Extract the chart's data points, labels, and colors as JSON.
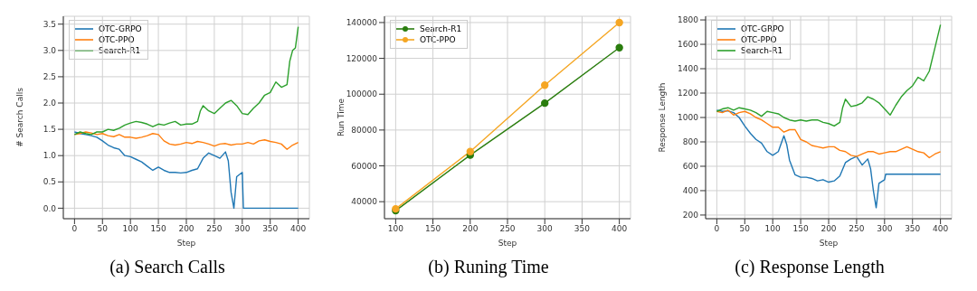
{
  "chart_data": [
    {
      "type": "line",
      "title": "(a) Search Calls",
      "xlabel": "Step",
      "ylabel": "# Search Calls",
      "xlim": [
        -20,
        420
      ],
      "xticks": [
        0,
        50,
        100,
        150,
        200,
        250,
        300,
        350,
        400
      ],
      "ylim": [
        -0.2,
        3.65
      ],
      "yticks": [
        {
          "value": 0,
          "label": "0.0"
        },
        0.5,
        {
          "value": 1,
          "label": "1.0"
        },
        1.5,
        {
          "value": 2,
          "label": "2.0"
        },
        2.5,
        {
          "value": 3,
          "label": "3.0"
        },
        3.5
      ],
      "grid": true,
      "legend": "top left",
      "marker": "none",
      "series": [
        {
          "name": "OTC-GRPO",
          "color": "#1f77b4",
          "x": [
            0,
            10,
            20,
            30,
            40,
            50,
            60,
            70,
            80,
            90,
            100,
            110,
            120,
            130,
            140,
            150,
            160,
            170,
            180,
            190,
            200,
            210,
            220,
            230,
            240,
            250,
            260,
            270,
            275,
            280,
            285,
            290,
            300,
            302,
            310,
            350,
            400
          ],
          "values": [
            1.45,
            1.42,
            1.4,
            1.38,
            1.35,
            1.28,
            1.2,
            1.15,
            1.12,
            1.0,
            0.98,
            0.93,
            0.88,
            0.8,
            0.72,
            0.78,
            0.72,
            0.68,
            0.68,
            0.67,
            0.68,
            0.72,
            0.75,
            0.95,
            1.05,
            1.0,
            0.95,
            1.07,
            0.9,
            0.3,
            0.0,
            0.6,
            0.68,
            0.0,
            0.0,
            0.0,
            0.0
          ]
        },
        {
          "name": "OTC-PPO",
          "color": "#ff7f0e",
          "x": [
            0,
            10,
            20,
            30,
            40,
            50,
            60,
            70,
            80,
            90,
            100,
            110,
            120,
            130,
            140,
            150,
            160,
            170,
            180,
            190,
            200,
            210,
            220,
            230,
            240,
            250,
            260,
            270,
            280,
            290,
            300,
            310,
            320,
            330,
            340,
            350,
            360,
            370,
            380,
            390,
            400
          ],
          "values": [
            1.4,
            1.42,
            1.45,
            1.43,
            1.4,
            1.42,
            1.38,
            1.36,
            1.4,
            1.35,
            1.35,
            1.33,
            1.35,
            1.38,
            1.42,
            1.4,
            1.28,
            1.22,
            1.2,
            1.22,
            1.25,
            1.23,
            1.27,
            1.25,
            1.22,
            1.18,
            1.22,
            1.23,
            1.2,
            1.22,
            1.22,
            1.25,
            1.22,
            1.28,
            1.3,
            1.27,
            1.25,
            1.22,
            1.12,
            1.2,
            1.25
          ]
        },
        {
          "name": "Search-R1",
          "color": "#2ca02c",
          "x": [
            0,
            10,
            20,
            30,
            40,
            50,
            60,
            70,
            80,
            90,
            100,
            110,
            120,
            130,
            140,
            150,
            160,
            170,
            180,
            190,
            200,
            210,
            220,
            225,
            230,
            240,
            250,
            260,
            270,
            280,
            290,
            300,
            310,
            320,
            330,
            340,
            350,
            360,
            370,
            380,
            385,
            390,
            395,
            400
          ],
          "values": [
            1.4,
            1.45,
            1.42,
            1.4,
            1.45,
            1.45,
            1.5,
            1.48,
            1.52,
            1.58,
            1.62,
            1.65,
            1.63,
            1.6,
            1.55,
            1.6,
            1.58,
            1.62,
            1.65,
            1.58,
            1.6,
            1.6,
            1.65,
            1.85,
            1.95,
            1.85,
            1.8,
            1.9,
            2.0,
            2.05,
            1.95,
            1.8,
            1.78,
            1.9,
            2.0,
            2.15,
            2.2,
            2.4,
            2.3,
            2.35,
            2.8,
            3.0,
            3.05,
            3.45
          ]
        }
      ]
    },
    {
      "type": "line",
      "title": "(b) Runing Time",
      "xlabel": "Step",
      "ylabel": "Run Time",
      "xlim": [
        85,
        415
      ],
      "xticks": [
        100,
        150,
        200,
        250,
        300,
        350,
        400
      ],
      "ylim": [
        30500,
        143500
      ],
      "yticks": [
        40000,
        60000,
        80000,
        100000,
        120000,
        140000
      ],
      "grid": true,
      "legend": "top left",
      "marker": "circle",
      "series": [
        {
          "name": "Search-R1",
          "color": "#2a7d0e",
          "x": [
            100,
            200,
            300,
            400
          ],
          "values": [
            35000,
            66000,
            95000,
            126000
          ]
        },
        {
          "name": "OTC-PPO",
          "color": "#f5a623",
          "x": [
            100,
            200,
            300,
            400
          ],
          "values": [
            36000,
            68000,
            105000,
            140000
          ]
        }
      ]
    },
    {
      "type": "line",
      "title": "(c) Response Length",
      "xlabel": "Step",
      "ylabel": "Response Length",
      "xlim": [
        -20,
        420
      ],
      "xticks": [
        0,
        50,
        100,
        150,
        200,
        250,
        300,
        350,
        400
      ],
      "ylim": [
        170,
        1830
      ],
      "yticks": [
        200,
        400,
        600,
        800,
        1000,
        1200,
        1400,
        1600,
        1800
      ],
      "grid": true,
      "legend": "top left",
      "marker": "none",
      "series": [
        {
          "name": "OTC-GRPO",
          "color": "#1f77b4",
          "x": [
            0,
            10,
            20,
            30,
            40,
            50,
            60,
            70,
            80,
            90,
            100,
            110,
            120,
            125,
            130,
            140,
            150,
            160,
            170,
            180,
            190,
            200,
            210,
            220,
            230,
            240,
            250,
            260,
            270,
            275,
            280,
            285,
            290,
            300,
            302,
            310,
            350,
            400
          ],
          "values": [
            1060,
            1050,
            1055,
            1040,
            1000,
            930,
            870,
            820,
            790,
            720,
            690,
            720,
            850,
            780,
            650,
            530,
            510,
            510,
            500,
            480,
            490,
            470,
            480,
            520,
            630,
            660,
            680,
            610,
            660,
            580,
            400,
            260,
            460,
            490,
            535,
            535,
            535,
            535
          ]
        },
        {
          "name": "OTC-PPO",
          "color": "#ff7f0e",
          "x": [
            0,
            10,
            20,
            30,
            40,
            50,
            60,
            70,
            80,
            90,
            100,
            110,
            120,
            130,
            140,
            150,
            160,
            170,
            180,
            190,
            200,
            210,
            220,
            230,
            240,
            250,
            260,
            270,
            280,
            290,
            300,
            310,
            320,
            330,
            340,
            350,
            360,
            370,
            380,
            390,
            400
          ],
          "values": [
            1050,
            1040,
            1060,
            1020,
            1040,
            1050,
            1030,
            1000,
            980,
            950,
            920,
            920,
            880,
            900,
            900,
            820,
            800,
            770,
            760,
            750,
            760,
            760,
            730,
            720,
            690,
            680,
            700,
            720,
            720,
            700,
            710,
            720,
            720,
            740,
            760,
            740,
            720,
            710,
            670,
            700,
            720
          ]
        },
        {
          "name": "Search-R1",
          "color": "#2ca02c",
          "x": [
            0,
            10,
            20,
            30,
            40,
            50,
            60,
            70,
            80,
            90,
            100,
            110,
            120,
            130,
            140,
            150,
            160,
            170,
            180,
            190,
            200,
            210,
            220,
            225,
            230,
            240,
            250,
            260,
            270,
            280,
            290,
            300,
            310,
            320,
            330,
            340,
            350,
            360,
            370,
            380,
            390,
            400
          ],
          "values": [
            1050,
            1070,
            1080,
            1060,
            1080,
            1070,
            1060,
            1040,
            1010,
            1050,
            1040,
            1030,
            1000,
            980,
            970,
            980,
            970,
            980,
            980,
            960,
            950,
            930,
            960,
            1080,
            1150,
            1090,
            1100,
            1120,
            1170,
            1150,
            1120,
            1070,
            1020,
            1100,
            1170,
            1220,
            1260,
            1330,
            1300,
            1380,
            1570,
            1760
          ]
        }
      ]
    }
  ]
}
